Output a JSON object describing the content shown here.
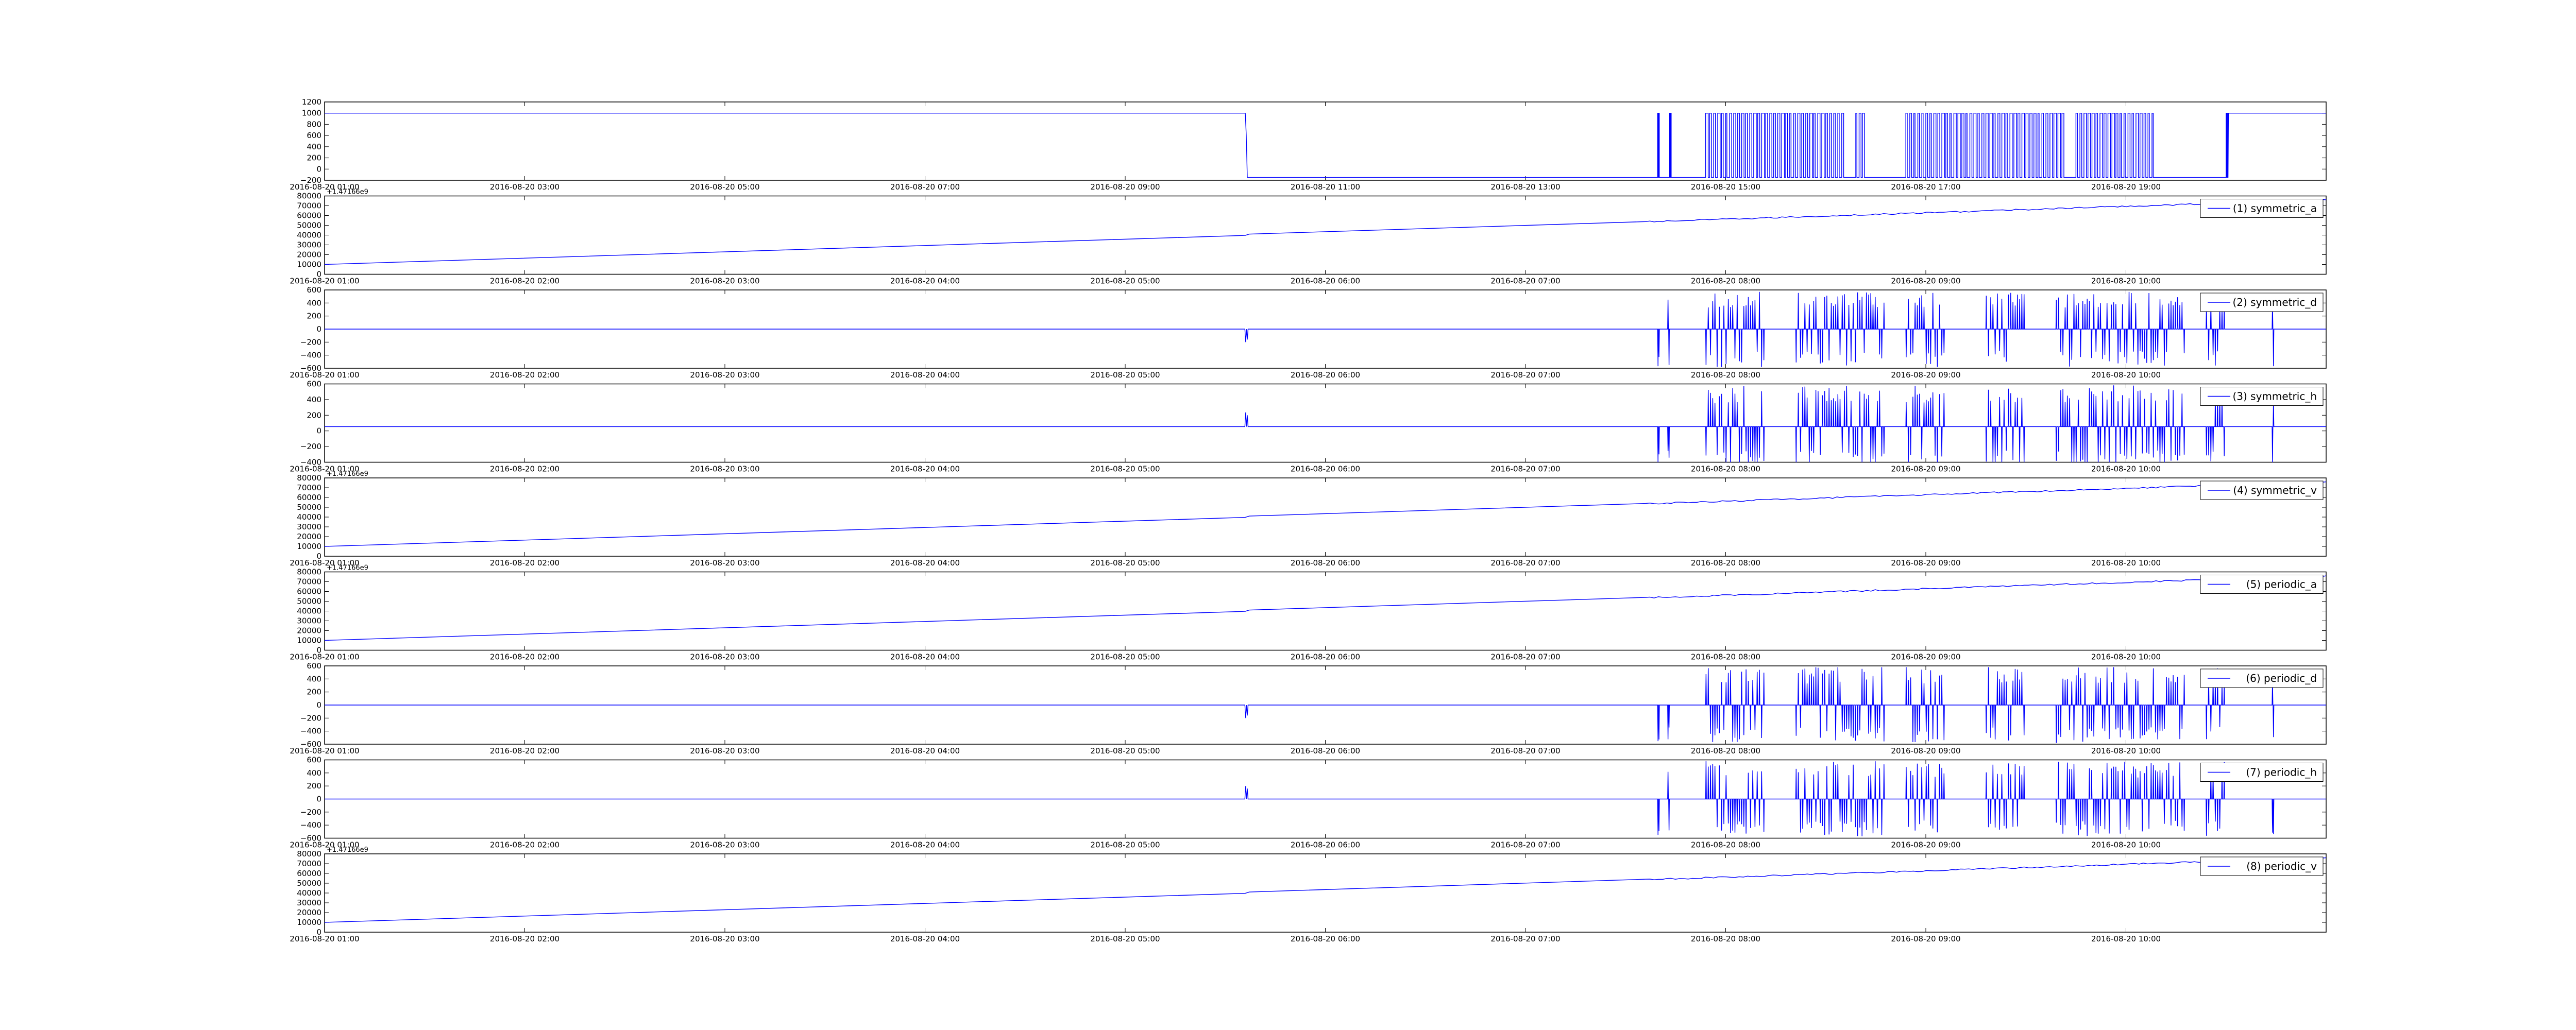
{
  "chart_data": [
    {
      "type": "line",
      "x_ticks": [
        "2016-08-20 01:00",
        "2016-08-20 03:00",
        "2016-08-20 05:00",
        "2016-08-20 07:00",
        "2016-08-20 09:00",
        "2016-08-20 11:00",
        "2016-08-20 13:00",
        "2016-08-20 15:00",
        "2016-08-20 17:00",
        "2016-08-20 19:00"
      ],
      "y_ticks": [
        "1200",
        "1000",
        "800",
        "600",
        "400",
        "200",
        "0",
        "−200"
      ],
      "ylim": [
        -200,
        1200
      ],
      "offset_text": "",
      "legend": "",
      "grid": false,
      "pattern": "binary",
      "high": 1000,
      "low": -150,
      "color": "#0000ff"
    },
    {
      "type": "line",
      "x_ticks": [
        "2016-08-20 01:00",
        "2016-08-20 02:00",
        "2016-08-20 03:00",
        "2016-08-20 04:00",
        "2016-08-20 05:00",
        "2016-08-20 06:00",
        "2016-08-20 07:00",
        "2016-08-20 08:00",
        "2016-08-20 09:00",
        "2016-08-20 10:00"
      ],
      "y_ticks": [
        "80000",
        "70000",
        "60000",
        "50000",
        "40000",
        "30000",
        "20000",
        "10000",
        "0"
      ],
      "ylim": [
        0,
        80000
      ],
      "offset_text": "+1.47166e9",
      "legend": "(1) symmetric_a",
      "legend_position": "upper-right",
      "grid": false,
      "pattern": "ramp",
      "start": 10000,
      "end": 76000,
      "color": "#0000ff"
    },
    {
      "type": "line",
      "x_ticks": [
        "2016-08-20 01:00",
        "2016-08-20 02:00",
        "2016-08-20 03:00",
        "2016-08-20 04:00",
        "2016-08-20 05:00",
        "2016-08-20 06:00",
        "2016-08-20 07:00",
        "2016-08-20 08:00",
        "2016-08-20 09:00",
        "2016-08-20 10:00"
      ],
      "y_ticks": [
        "600",
        "400",
        "200",
        "0",
        "−200",
        "−400",
        "−600"
      ],
      "ylim": [
        -600,
        600
      ],
      "offset_text": "",
      "legend": "(2) symmetric_d",
      "legend_position": "upper-right",
      "grid": false,
      "pattern": "spikes",
      "blip": -200,
      "color": "#0000ff"
    },
    {
      "type": "line",
      "x_ticks": [
        "2016-08-20 01:00",
        "2016-08-20 02:00",
        "2016-08-20 03:00",
        "2016-08-20 04:00",
        "2016-08-20 05:00",
        "2016-08-20 06:00",
        "2016-08-20 07:00",
        "2016-08-20 08:00",
        "2016-08-20 09:00",
        "2016-08-20 10:00"
      ],
      "y_ticks": [
        "600",
        "400",
        "200",
        "0",
        "−200",
        "−400"
      ],
      "ylim": [
        -500,
        600
      ],
      "offset_text": "",
      "legend": "(3) symmetric_h",
      "legend_position": "upper-right",
      "grid": false,
      "pattern": "spikes",
      "blip": 200,
      "color": "#0000ff"
    },
    {
      "type": "line",
      "x_ticks": [
        "2016-08-20 01:00",
        "2016-08-20 02:00",
        "2016-08-20 03:00",
        "2016-08-20 04:00",
        "2016-08-20 05:00",
        "2016-08-20 06:00",
        "2016-08-20 07:00",
        "2016-08-20 08:00",
        "2016-08-20 09:00",
        "2016-08-20 10:00"
      ],
      "y_ticks": [
        "80000",
        "70000",
        "60000",
        "50000",
        "40000",
        "30000",
        "20000",
        "10000",
        "0"
      ],
      "ylim": [
        0,
        80000
      ],
      "offset_text": "+1.47166e9",
      "legend": "(4) symmetric_v",
      "legend_position": "upper-right",
      "grid": false,
      "pattern": "ramp",
      "start": 10000,
      "end": 76000,
      "color": "#0000ff"
    },
    {
      "type": "line",
      "x_ticks": [
        "2016-08-20 01:00",
        "2016-08-20 02:00",
        "2016-08-20 03:00",
        "2016-08-20 04:00",
        "2016-08-20 05:00",
        "2016-08-20 06:00",
        "2016-08-20 07:00",
        "2016-08-20 08:00",
        "2016-08-20 09:00",
        "2016-08-20 10:00"
      ],
      "y_ticks": [
        "80000",
        "70000",
        "60000",
        "50000",
        "40000",
        "30000",
        "20000",
        "10000",
        "0"
      ],
      "ylim": [
        0,
        80000
      ],
      "offset_text": "+1.47166e9",
      "legend": "(5) periodic_a",
      "legend_position": "upper-right",
      "grid": false,
      "pattern": "ramp",
      "start": 10000,
      "end": 76000,
      "color": "#0000ff"
    },
    {
      "type": "line",
      "x_ticks": [
        "2016-08-20 01:00",
        "2016-08-20 02:00",
        "2016-08-20 03:00",
        "2016-08-20 04:00",
        "2016-08-20 05:00",
        "2016-08-20 06:00",
        "2016-08-20 07:00",
        "2016-08-20 08:00",
        "2016-08-20 09:00",
        "2016-08-20 10:00"
      ],
      "y_ticks": [
        "600",
        "400",
        "200",
        "0",
        "−200",
        "−400",
        "−600"
      ],
      "ylim": [
        -600,
        600
      ],
      "offset_text": "",
      "legend": "(6) periodic_d",
      "legend_position": "upper-right",
      "grid": false,
      "pattern": "spikes",
      "blip": -200,
      "color": "#0000ff"
    },
    {
      "type": "line",
      "x_ticks": [
        "2016-08-20 01:00",
        "2016-08-20 02:00",
        "2016-08-20 03:00",
        "2016-08-20 04:00",
        "2016-08-20 05:00",
        "2016-08-20 06:00",
        "2016-08-20 07:00",
        "2016-08-20 08:00",
        "2016-08-20 09:00",
        "2016-08-20 10:00"
      ],
      "y_ticks": [
        "600",
        "400",
        "200",
        "0",
        "−200",
        "−400",
        "−600"
      ],
      "ylim": [
        -600,
        600
      ],
      "offset_text": "",
      "legend": "(7) periodic_h",
      "legend_position": "upper-right",
      "grid": false,
      "pattern": "spikes",
      "blip": 200,
      "color": "#0000ff"
    },
    {
      "type": "line",
      "x_ticks": [
        "2016-08-20 01:00",
        "2016-08-20 02:00",
        "2016-08-20 03:00",
        "2016-08-20 04:00",
        "2016-08-20 05:00",
        "2016-08-20 06:00",
        "2016-08-20 07:00",
        "2016-08-20 08:00",
        "2016-08-20 09:00",
        "2016-08-20 10:00"
      ],
      "y_ticks": [
        "80000",
        "70000",
        "60000",
        "50000",
        "40000",
        "30000",
        "20000",
        "10000",
        "0"
      ],
      "ylim": [
        0,
        80000
      ],
      "offset_text": "+1.47166e9",
      "legend": "(8) periodic_v",
      "legend_position": "upper-right",
      "grid": false,
      "pattern": "ramp",
      "start": 10000,
      "end": 76000,
      "color": "#0000ff"
    }
  ]
}
